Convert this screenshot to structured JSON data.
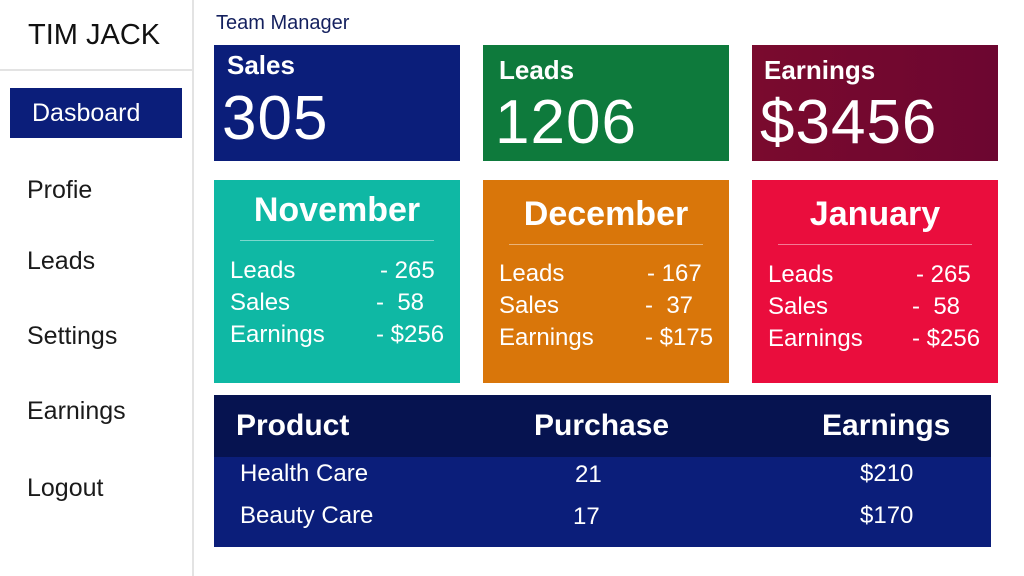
{
  "sidebar": {
    "brand": "TIM JACK",
    "items": [
      {
        "label": "Dasboard"
      },
      {
        "label": "Profie"
      },
      {
        "label": "Leads"
      },
      {
        "label": "Settings"
      },
      {
        "label": "Earnings"
      },
      {
        "label": "Logout"
      }
    ]
  },
  "header": {
    "title": "Team Manager"
  },
  "stats": [
    {
      "label": "Sales",
      "value": "305",
      "color": "#0b1e7a"
    },
    {
      "label": "Leads",
      "value": "1206",
      "color": "#0e7a3c"
    },
    {
      "label": "Earnings",
      "value": "$3456",
      "color": "#7a0a2e"
    }
  ],
  "months": [
    {
      "title": "November",
      "color": "#0fb8a4",
      "rows": [
        {
          "key": "Leads",
          "value": "- 265"
        },
        {
          "key": "Sales",
          "value": "-  58"
        },
        {
          "key": "Earnings",
          "value": "- $256"
        }
      ]
    },
    {
      "title": "December",
      "color": "#d9760a",
      "rows": [
        {
          "key": "Leads",
          "value": "- 167"
        },
        {
          "key": "Sales",
          "value": "-  37"
        },
        {
          "key": "Earnings",
          "value": "- $175"
        }
      ]
    },
    {
      "title": "January",
      "color": "#ea0d3d",
      "rows": [
        {
          "key": "Leads",
          "value": "- 265"
        },
        {
          "key": "Sales",
          "value": "-  58"
        },
        {
          "key": "Earnings",
          "value": "- $256"
        }
      ]
    }
  ],
  "table": {
    "headers": [
      "Product",
      "Purchase",
      "Earnings"
    ],
    "rows": [
      [
        "Health Care",
        "21",
        "$210"
      ],
      [
        "Beauty Care",
        "17",
        "$170"
      ]
    ]
  }
}
